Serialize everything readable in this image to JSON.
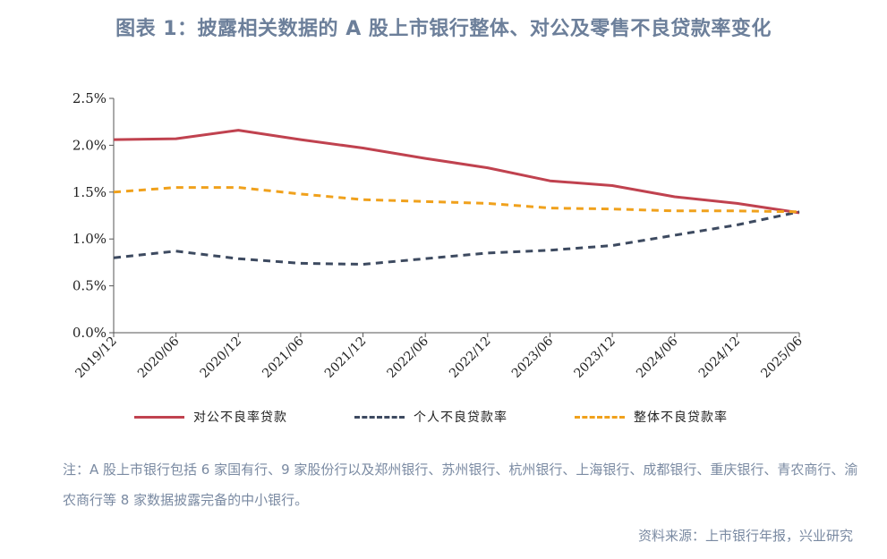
{
  "title": "图表 1：披露相关数据的 A 股上市银行整体、对公及零售不良贷款率变化",
  "chart_data": {
    "type": "line",
    "x": [
      "2019/12",
      "2020/06",
      "2020/12",
      "2021/06",
      "2021/12",
      "2022/06",
      "2022/12",
      "2023/06",
      "2023/12",
      "2024/06",
      "2024/12",
      "2025/06"
    ],
    "yticks": [
      "0.0%",
      "0.5%",
      "1.0%",
      "1.5%",
      "2.0%",
      "2.5%"
    ],
    "ylim": [
      0,
      2.5
    ],
    "series": [
      {
        "name": "对公不良率贷款",
        "values": [
          2.06,
          2.07,
          2.16,
          2.06,
          1.97,
          1.86,
          1.76,
          1.62,
          1.57,
          1.45,
          1.38,
          1.28
        ],
        "color": "#c0424f",
        "style": "solid"
      },
      {
        "name": "个人不良贷款率",
        "values": [
          0.8,
          0.87,
          0.79,
          0.74,
          0.73,
          0.79,
          0.85,
          0.88,
          0.93,
          1.04,
          1.15,
          1.29
        ],
        "color": "#3d4a60",
        "style": "dash"
      },
      {
        "name": "整体不良贷款率",
        "values": [
          1.5,
          1.55,
          1.55,
          1.48,
          1.42,
          1.4,
          1.38,
          1.33,
          1.32,
          1.3,
          1.3,
          1.29
        ],
        "color": "#f0a11c",
        "style": "dash"
      }
    ]
  },
  "note": "注：A 股上市银行包括 6 家国有行、9 家股份行以及郑州银行、苏州银行、杭州银行、上海银行、成都银行、重庆银行、青农商行、渝农商行等 8 家数据披露完备的中小银行。",
  "source": "资料来源：上市银行年报，兴业研究"
}
